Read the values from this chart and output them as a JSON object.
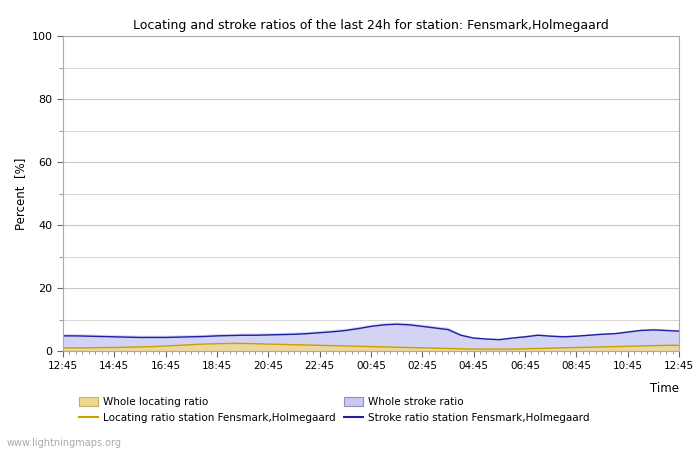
{
  "title": "Locating and stroke ratios of the last 24h for station: Fensmark,Holmegaard",
  "xlabel": "Time",
  "ylabel": "Percent  [%]",
  "xlim": [
    0,
    48
  ],
  "ylim": [
    0,
    100
  ],
  "yticks": [
    0,
    20,
    40,
    60,
    80,
    100
  ],
  "ytick_minor": [
    10,
    30,
    50,
    70,
    90
  ],
  "xtick_labels": [
    "12:45",
    "14:45",
    "16:45",
    "18:45",
    "20:45",
    "22:45",
    "00:45",
    "02:45",
    "04:45",
    "06:45",
    "08:45",
    "10:45",
    "12:45"
  ],
  "xtick_positions": [
    0,
    4,
    8,
    12,
    16,
    20,
    24,
    28,
    32,
    36,
    40,
    44,
    48
  ],
  "background_color": "#ffffff",
  "plot_bg_color": "#ffffff",
  "grid_color": "#c8c8c8",
  "watermark": "www.lightningmaps.org",
  "whole_locating_fill_color": "#f0d890",
  "whole_stroke_fill_color": "#c8c8f0",
  "station_locating_line_color": "#c8a000",
  "station_stroke_line_color": "#2020a0",
  "whole_locating_data": [
    1.2,
    1.2,
    1.3,
    1.3,
    1.3,
    1.4,
    1.5,
    1.6,
    1.8,
    2.0,
    2.2,
    2.4,
    2.5,
    2.6,
    2.6,
    2.5,
    2.4,
    2.3,
    2.2,
    2.1,
    2.0,
    1.9,
    1.8,
    1.7,
    1.6,
    1.5,
    1.4,
    1.3,
    1.2,
    1.1,
    1.0,
    0.9,
    0.8,
    0.8,
    0.8,
    0.8,
    0.9,
    1.0,
    1.1,
    1.2,
    1.3,
    1.4,
    1.5,
    1.6,
    1.7,
    1.8,
    1.9,
    2.0,
    2.0
  ],
  "whole_stroke_data": [
    5.5,
    5.5,
    5.4,
    5.3,
    5.2,
    5.1,
    5.0,
    5.0,
    5.0,
    5.1,
    5.2,
    5.3,
    5.5,
    5.6,
    5.7,
    5.7,
    5.8,
    5.9,
    6.0,
    6.2,
    6.5,
    6.8,
    7.2,
    7.8,
    8.5,
    9.0,
    9.2,
    9.0,
    8.5,
    8.0,
    7.5,
    5.5,
    4.5,
    4.2,
    4.0,
    4.5,
    5.0,
    5.5,
    5.2,
    5.0,
    5.2,
    5.5,
    5.8,
    6.0,
    6.5,
    7.0,
    7.2,
    7.0,
    6.8
  ],
  "station_locating_data": [
    1.0,
    1.0,
    1.0,
    1.1,
    1.1,
    1.2,
    1.3,
    1.4,
    1.6,
    1.8,
    2.0,
    2.2,
    2.3,
    2.4,
    2.4,
    2.3,
    2.2,
    2.1,
    2.0,
    1.9,
    1.8,
    1.7,
    1.6,
    1.5,
    1.4,
    1.3,
    1.2,
    1.1,
    1.0,
    0.9,
    0.8,
    0.7,
    0.6,
    0.6,
    0.6,
    0.6,
    0.7,
    0.8,
    0.9,
    1.0,
    1.1,
    1.2,
    1.3,
    1.4,
    1.5,
    1.6,
    1.7,
    1.8,
    1.8
  ],
  "station_stroke_data": [
    4.8,
    4.8,
    4.7,
    4.6,
    4.5,
    4.4,
    4.3,
    4.3,
    4.3,
    4.4,
    4.5,
    4.6,
    4.8,
    4.9,
    5.0,
    5.0,
    5.1,
    5.2,
    5.3,
    5.5,
    5.8,
    6.1,
    6.5,
    7.1,
    7.8,
    8.3,
    8.5,
    8.3,
    7.8,
    7.3,
    6.8,
    5.0,
    4.1,
    3.8,
    3.6,
    4.1,
    4.5,
    5.0,
    4.7,
    4.5,
    4.7,
    5.0,
    5.3,
    5.5,
    6.0,
    6.5,
    6.7,
    6.5,
    6.3
  ],
  "legend_labels": [
    "Whole locating ratio",
    "Locating ratio station Fensmark,Holmegaard",
    "Whole stroke ratio",
    "Stroke ratio station Fensmark,Holmegaard"
  ]
}
